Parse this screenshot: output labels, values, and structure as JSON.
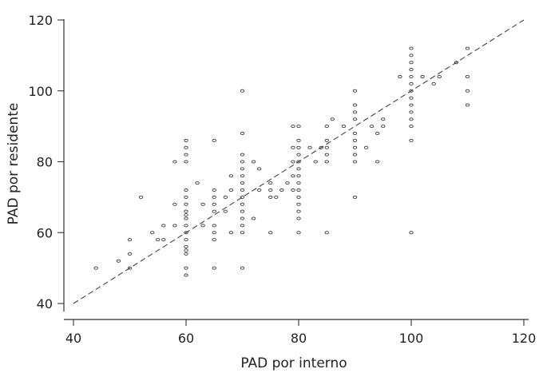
{
  "chart_data": {
    "type": "scatter",
    "title": "",
    "xlabel": "PAD por interno",
    "ylabel": "PAD por residente",
    "xlim": [
      40,
      120
    ],
    "ylim": [
      40,
      120
    ],
    "xticks": [
      "40",
      "60",
      "80",
      "100",
      "120"
    ],
    "yticks": [
      "40",
      "60",
      "80",
      "100",
      "120"
    ],
    "grid": false,
    "legend": "none",
    "reference_line": {
      "type": "identity",
      "from": [
        40,
        40
      ],
      "to": [
        120,
        120
      ],
      "style": "dashed"
    },
    "points": [
      [
        44,
        50
      ],
      [
        48,
        52
      ],
      [
        50,
        50
      ],
      [
        50,
        54
      ],
      [
        50,
        58
      ],
      [
        52,
        70
      ],
      [
        54,
        60
      ],
      [
        55,
        58
      ],
      [
        56,
        62
      ],
      [
        56,
        58
      ],
      [
        58,
        80
      ],
      [
        58,
        68
      ],
      [
        58,
        62
      ],
      [
        60,
        86
      ],
      [
        60,
        84
      ],
      [
        60,
        82
      ],
      [
        60,
        80
      ],
      [
        60,
        72
      ],
      [
        60,
        70
      ],
      [
        60,
        68
      ],
      [
        60,
        66
      ],
      [
        60,
        65
      ],
      [
        60,
        64
      ],
      [
        60,
        62
      ],
      [
        60,
        60
      ],
      [
        60,
        58
      ],
      [
        60,
        56
      ],
      [
        60,
        55
      ],
      [
        60,
        54
      ],
      [
        60,
        50
      ],
      [
        60,
        48
      ],
      [
        62,
        74
      ],
      [
        63,
        68
      ],
      [
        63,
        62
      ],
      [
        65,
        86
      ],
      [
        65,
        72
      ],
      [
        65,
        70
      ],
      [
        65,
        68
      ],
      [
        65,
        66
      ],
      [
        65,
        62
      ],
      [
        65,
        60
      ],
      [
        65,
        58
      ],
      [
        65,
        50
      ],
      [
        67,
        70
      ],
      [
        67,
        66
      ],
      [
        68,
        76
      ],
      [
        68,
        72
      ],
      [
        68,
        60
      ],
      [
        70,
        100
      ],
      [
        70,
        88
      ],
      [
        70,
        82
      ],
      [
        70,
        80
      ],
      [
        70,
        78
      ],
      [
        70,
        76
      ],
      [
        70,
        74
      ],
      [
        70,
        72
      ],
      [
        70,
        70
      ],
      [
        70,
        68
      ],
      [
        70,
        66
      ],
      [
        70,
        64
      ],
      [
        70,
        62
      ],
      [
        70,
        60
      ],
      [
        70,
        50
      ],
      [
        72,
        80
      ],
      [
        72,
        64
      ],
      [
        73,
        78
      ],
      [
        73,
        72
      ],
      [
        75,
        74
      ],
      [
        75,
        72
      ],
      [
        75,
        70
      ],
      [
        75,
        60
      ],
      [
        76,
        70
      ],
      [
        77,
        72
      ],
      [
        78,
        74
      ],
      [
        79,
        90
      ],
      [
        79,
        84
      ],
      [
        79,
        80
      ],
      [
        79,
        76
      ],
      [
        79,
        72
      ],
      [
        80,
        90
      ],
      [
        80,
        86
      ],
      [
        80,
        84
      ],
      [
        80,
        82
      ],
      [
        80,
        80
      ],
      [
        80,
        78
      ],
      [
        80,
        76
      ],
      [
        80,
        74
      ],
      [
        80,
        72
      ],
      [
        80,
        70
      ],
      [
        80,
        68
      ],
      [
        80,
        66
      ],
      [
        80,
        64
      ],
      [
        80,
        60
      ],
      [
        82,
        84
      ],
      [
        83,
        80
      ],
      [
        84,
        84
      ],
      [
        85,
        90
      ],
      [
        85,
        86
      ],
      [
        85,
        84
      ],
      [
        85,
        82
      ],
      [
        85,
        80
      ],
      [
        85,
        60
      ],
      [
        86,
        92
      ],
      [
        88,
        90
      ],
      [
        90,
        100
      ],
      [
        90,
        96
      ],
      [
        90,
        94
      ],
      [
        90,
        92
      ],
      [
        90,
        88
      ],
      [
        90,
        86
      ],
      [
        90,
        84
      ],
      [
        90,
        82
      ],
      [
        90,
        80
      ],
      [
        90,
        70
      ],
      [
        92,
        84
      ],
      [
        93,
        90
      ],
      [
        94,
        88
      ],
      [
        94,
        80
      ],
      [
        95,
        92
      ],
      [
        95,
        90
      ],
      [
        98,
        104
      ],
      [
        100,
        112
      ],
      [
        100,
        110
      ],
      [
        100,
        108
      ],
      [
        100,
        106
      ],
      [
        100,
        104
      ],
      [
        100,
        102
      ],
      [
        100,
        100
      ],
      [
        100,
        98
      ],
      [
        100,
        96
      ],
      [
        100,
        94
      ],
      [
        100,
        92
      ],
      [
        100,
        90
      ],
      [
        100,
        86
      ],
      [
        100,
        60
      ],
      [
        102,
        104
      ],
      [
        104,
        102
      ],
      [
        105,
        104
      ],
      [
        108,
        108
      ],
      [
        110,
        112
      ],
      [
        110,
        104
      ],
      [
        110,
        100
      ],
      [
        110,
        96
      ]
    ]
  }
}
